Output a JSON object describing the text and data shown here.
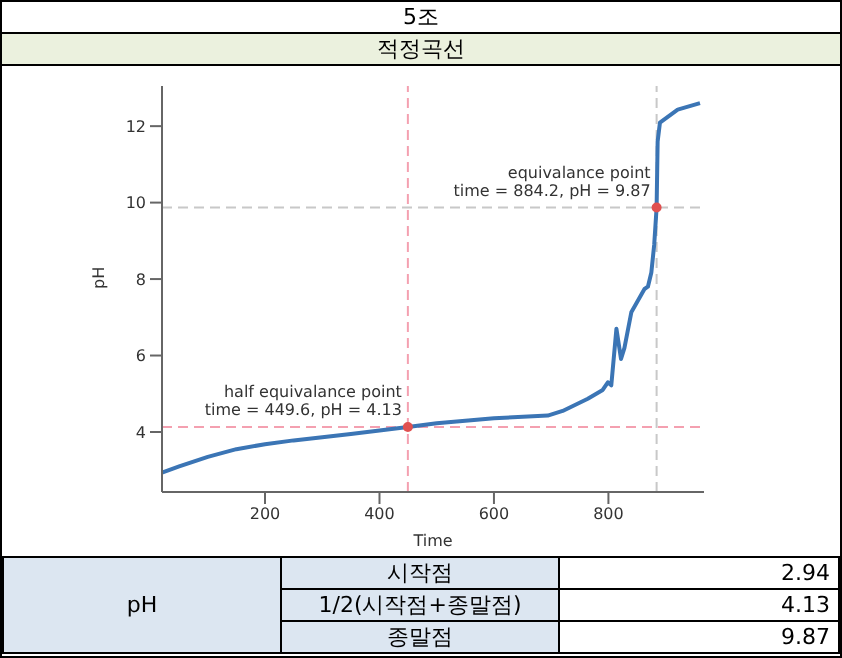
{
  "chart_data": {
    "type": "line",
    "title": "5조",
    "subtitle": "적정곡선",
    "xlabel": "Time",
    "ylabel": "pH",
    "xlim": [
      20,
      967
    ],
    "ylim": [
      2.43,
      13.05
    ],
    "xticks": [
      200,
      400,
      600,
      800
    ],
    "yticks": [
      4,
      6,
      8,
      10,
      12
    ],
    "grid": false,
    "legend": false,
    "series": [
      {
        "color": "#3b75b5",
        "marker": "none",
        "line_style": "solid",
        "x": [
          20,
          50,
          100,
          150,
          200,
          250,
          300,
          350,
          400,
          449.6,
          500,
          600,
          694,
          720,
          764,
          790,
          799,
          805,
          814,
          822,
          828,
          840,
          863,
          869,
          875,
          880,
          884.2,
          886,
          890,
          921,
          960
        ],
        "values": [
          2.94,
          3.1,
          3.35,
          3.55,
          3.68,
          3.78,
          3.86,
          3.95,
          4.04,
          4.13,
          4.23,
          4.36,
          4.43,
          4.55,
          4.87,
          5.1,
          5.3,
          5.22,
          6.7,
          5.91,
          6.2,
          7.13,
          7.74,
          7.8,
          8.17,
          8.9,
          9.87,
          11.6,
          12.09,
          12.43,
          12.6
        ]
      },
      {
        "type": "scatter",
        "color": "#e05050",
        "marker": "circle",
        "x": [
          449.6,
          884.2
        ],
        "values": [
          4.13,
          9.87
        ]
      }
    ],
    "ref_lines": [
      {
        "axis": "x",
        "value": 449.6,
        "color": "#f4a0b0",
        "line_style": "dashed"
      },
      {
        "axis": "y",
        "value": 4.13,
        "color": "#f4a0b0",
        "line_style": "dashed"
      },
      {
        "axis": "x",
        "value": 884.2,
        "color": "#c8c8c8",
        "line_style": "dashed"
      },
      {
        "axis": "y",
        "value": 9.87,
        "color": "#c8c8c8",
        "line_style": "dashed"
      }
    ],
    "annotations": [
      {
        "text": "half equivalance point\ntime = 449.6, pH = 4.13",
        "x": 449.6,
        "y": 4.13
      },
      {
        "text": "equivalance point\ntime = 884.2, pH = 9.87",
        "x": 884.2,
        "y": 9.87
      },
      "pH",
      "시작점",
      "2.94",
      "1/2(시작점+종말점)",
      "4.13",
      "종말점",
      "9.87"
    ]
  }
}
